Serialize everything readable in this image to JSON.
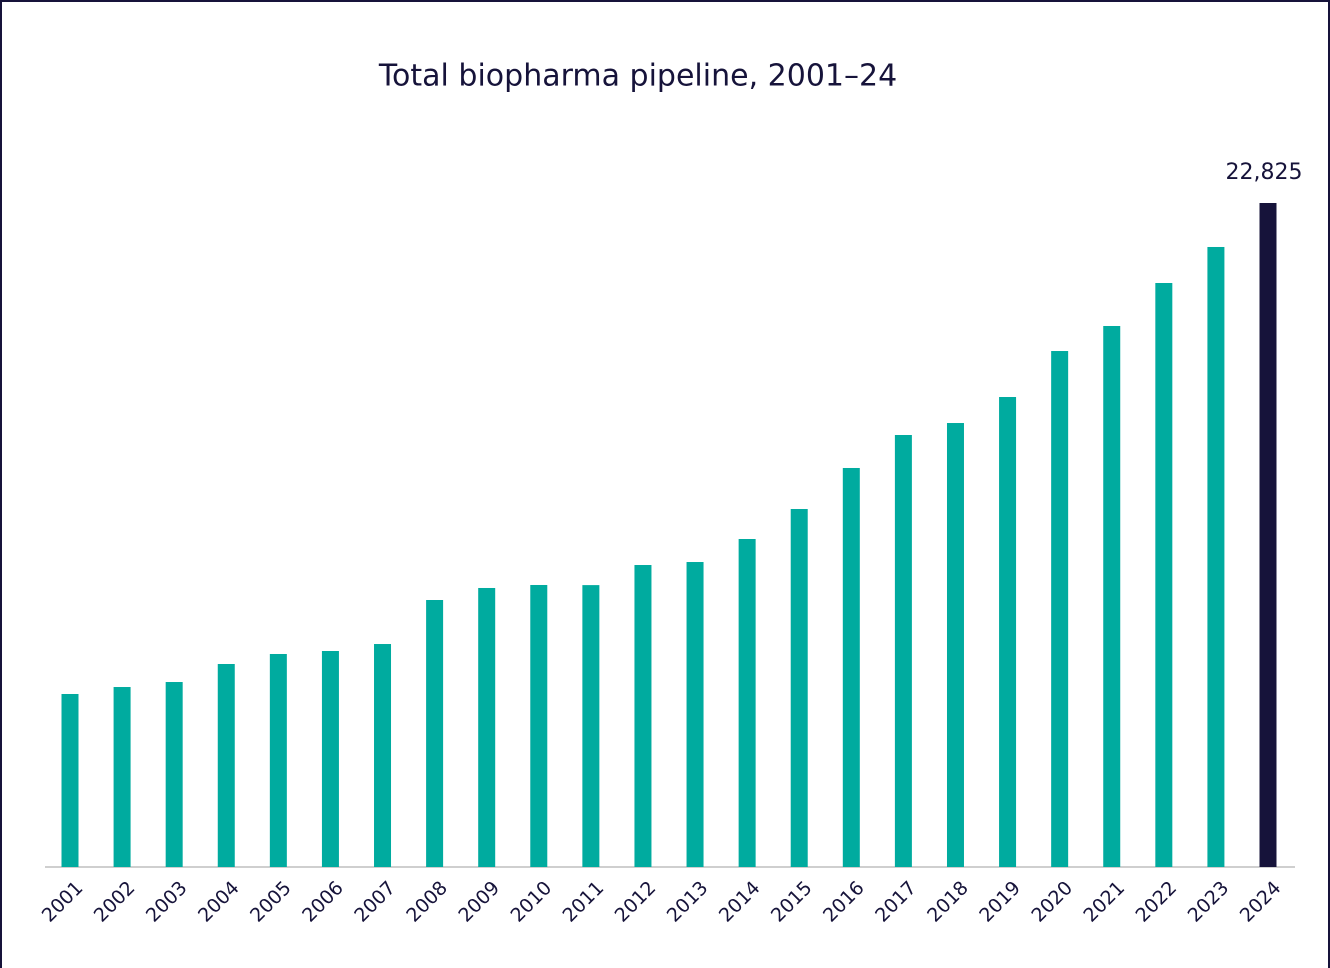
{
  "chart_data": {
    "type": "bar",
    "title": "Total biopharma pipeline, 2001–24",
    "categories": [
      "2001",
      "2002",
      "2003",
      "2004",
      "2005",
      "2006",
      "2007",
      "2008",
      "2009",
      "2010",
      "2011",
      "2012",
      "2013",
      "2014",
      "2015",
      "2016",
      "2017",
      "2018",
      "2019",
      "2020",
      "2021",
      "2022",
      "2023",
      "2024"
    ],
    "values": [
      5947,
      6187,
      6359,
      6978,
      7322,
      7425,
      7665,
      9178,
      9591,
      9694,
      9690,
      10381,
      10484,
      11275,
      12306,
      13716,
      14850,
      15262,
      16156,
      17737,
      18597,
      20075,
      21313,
      22825
    ],
    "value_labels": [
      null,
      null,
      null,
      null,
      null,
      null,
      null,
      null,
      null,
      null,
      null,
      null,
      null,
      null,
      null,
      null,
      null,
      null,
      null,
      null,
      null,
      null,
      null,
      "22,825"
    ],
    "colors": [
      "#00ab9f",
      "#00ab9f",
      "#00ab9f",
      "#00ab9f",
      "#00ab9f",
      "#00ab9f",
      "#00ab9f",
      "#00ab9f",
      "#00ab9f",
      "#00ab9f",
      "#00ab9f",
      "#00ab9f",
      "#00ab9f",
      "#00ab9f",
      "#00ab9f",
      "#00ab9f",
      "#00ab9f",
      "#00ab9f",
      "#00ab9f",
      "#00ab9f",
      "#00ab9f",
      "#00ab9f",
      "#00ab9f",
      "#16133a"
    ],
    "ylim": [
      0,
      22825
    ]
  }
}
